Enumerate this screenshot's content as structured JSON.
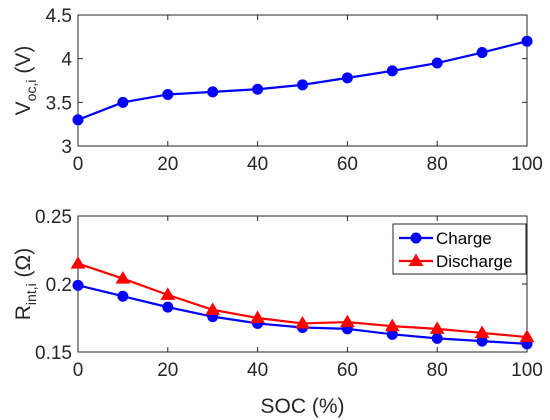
{
  "chart_data": [
    {
      "type": "line",
      "xlabel": "",
      "ylabel": {
        "main": "V",
        "sub": "oc,i",
        "unit": "(V)"
      },
      "x": [
        0,
        10,
        20,
        30,
        40,
        50,
        60,
        70,
        80,
        90,
        100
      ],
      "xlim": [
        0,
        100
      ],
      "ylim": [
        3,
        4.5
      ],
      "xticks": [
        "0",
        "20",
        "40",
        "60",
        "80",
        "100"
      ],
      "yticks": [
        "3",
        "3.5",
        "4",
        "4.5"
      ],
      "grid": false,
      "series": [
        {
          "values": [
            3.3,
            3.5,
            3.59,
            3.62,
            3.65,
            3.7,
            3.78,
            3.86,
            3.95,
            4.07,
            4.2
          ],
          "color": "#0000ff",
          "marker": "circle"
        }
      ]
    },
    {
      "type": "line",
      "xlabel": "SOC (%)",
      "ylabel": {
        "main": "R",
        "sub": "int,i",
        "unit": "(Ω)"
      },
      "x": [
        0,
        10,
        20,
        30,
        40,
        50,
        60,
        70,
        80,
        90,
        100
      ],
      "xlim": [
        0,
        100
      ],
      "ylim": [
        0.15,
        0.25
      ],
      "xticks": [
        "0",
        "20",
        "40",
        "60",
        "80",
        "100"
      ],
      "yticks": [
        "0.15",
        "0.2",
        "0.25"
      ],
      "grid": false,
      "legend_position": "top-right",
      "series": [
        {
          "name": "Charge",
          "values": [
            0.199,
            0.191,
            0.183,
            0.176,
            0.171,
            0.168,
            0.167,
            0.163,
            0.16,
            0.158,
            0.156
          ],
          "color": "#0000ff",
          "marker": "circle"
        },
        {
          "name": "Discharge",
          "values": [
            0.215,
            0.204,
            0.192,
            0.181,
            0.175,
            0.171,
            0.172,
            0.169,
            0.167,
            0.164,
            0.161
          ],
          "color": "#ff0000",
          "marker": "triangle"
        }
      ]
    }
  ]
}
